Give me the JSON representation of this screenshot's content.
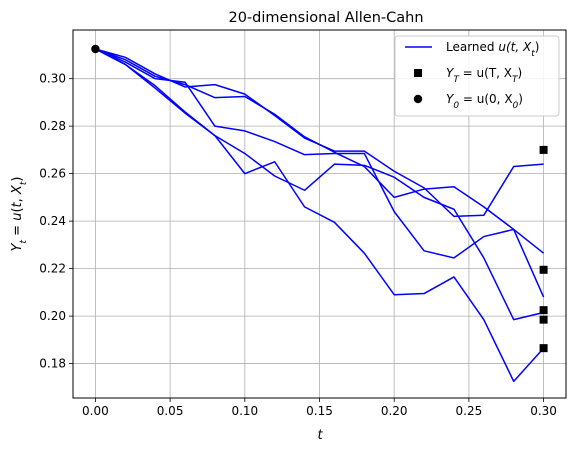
{
  "chart_data": {
    "type": "line",
    "title": "20-dimensional Allen-Cahn",
    "xlabel": "t",
    "ylabel": "Y_t = u(t, X_t)",
    "xlim": [
      -0.015,
      0.315
    ],
    "ylim": [
      0.1655,
      0.3205
    ],
    "x_ticks": [
      0.0,
      0.05,
      0.1,
      0.15,
      0.2,
      0.25,
      0.3
    ],
    "x_tick_labels": [
      "0.00",
      "0.05",
      "0.10",
      "0.15",
      "0.20",
      "0.25",
      "0.30"
    ],
    "y_ticks": [
      0.18,
      0.2,
      0.22,
      0.24,
      0.26,
      0.28,
      0.3
    ],
    "y_tick_labels": [
      "0.18",
      "0.20",
      "0.22",
      "0.24",
      "0.26",
      "0.28",
      "0.30"
    ],
    "grid": true,
    "legend_position": "top-right",
    "colors": {
      "line": "#0000ff",
      "marker": "#000000",
      "grid": "#b0b0b0"
    },
    "x": [
      0.0,
      0.02,
      0.04,
      0.06,
      0.08,
      0.1,
      0.12,
      0.14,
      0.16,
      0.18,
      0.2,
      0.22,
      0.24,
      0.26,
      0.28,
      0.3
    ],
    "series": [
      {
        "values": [
          0.3125,
          0.308,
          0.301,
          0.2975,
          0.292,
          0.2925,
          0.285,
          0.2755,
          0.269,
          0.263,
          0.25,
          0.2535,
          0.2545,
          0.246,
          0.2365,
          0.2265
        ]
      },
      {
        "values": [
          0.3125,
          0.309,
          0.302,
          0.2965,
          0.2975,
          0.2935,
          0.2845,
          0.275,
          0.2695,
          0.2695,
          0.261,
          0.254,
          0.242,
          0.2425,
          0.263,
          0.264
        ]
      },
      {
        "values": [
          0.3125,
          0.307,
          0.3,
          0.2985,
          0.28,
          0.278,
          0.2735,
          0.268,
          0.2685,
          0.2685,
          0.244,
          0.2275,
          0.2245,
          0.2335,
          0.2365,
          0.208
        ]
      },
      {
        "values": [
          0.3125,
          0.306,
          0.297,
          0.286,
          0.276,
          0.2685,
          0.259,
          0.253,
          0.264,
          0.2635,
          0.2585,
          0.25,
          0.245,
          0.2245,
          0.1985,
          0.2015
        ]
      },
      {
        "values": [
          0.3125,
          0.306,
          0.296,
          0.2855,
          0.276,
          0.26,
          0.265,
          0.246,
          0.2395,
          0.2265,
          0.209,
          0.2095,
          0.2165,
          0.1985,
          0.1725,
          0.1865
        ]
      }
    ],
    "terminal_points": {
      "x": 0.3,
      "y": [
        0.27,
        0.2195,
        0.2025,
        0.1985,
        0.1865
      ]
    },
    "initial_point": {
      "x": 0.0,
      "y": 0.3125
    },
    "legend": [
      {
        "kind": "line",
        "label_plain": "Learned ",
        "label_math": "u(t, X",
        "label_sub": "t",
        "label_end": ")"
      },
      {
        "kind": "square",
        "label_plain": "",
        "label_math": "Y",
        "label_sub": "T",
        "label_end": " = u(T, X",
        "label_sub2": "T",
        "label_end2": ")"
      },
      {
        "kind": "circle",
        "label_plain": "",
        "label_math": "Y",
        "label_sub": "0",
        "label_end": " = u(0, X",
        "label_sub2": "0",
        "label_end2": ")"
      }
    ]
  }
}
